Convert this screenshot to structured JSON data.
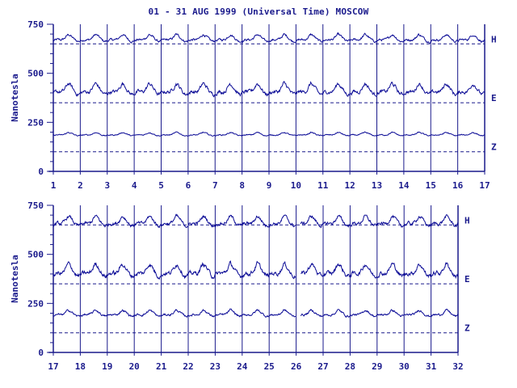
{
  "title": "01 - 31 AUG 1999 (Universal Time) MOSCOW",
  "colors": {
    "ink": "#1a1a8c",
    "trace": "#0b0b96",
    "background": "#ffffff"
  },
  "chart_data": [
    {
      "type": "line",
      "title": "01 - 31 AUG 1999 (Universal Time) MOSCOW",
      "ylabel": "Nanotesla",
      "xlabel": "",
      "x_ticks": [
        "1",
        "2",
        "3",
        "4",
        "5",
        "6",
        "7",
        "8",
        "9",
        "10",
        "11",
        "12",
        "13",
        "14",
        "15",
        "16",
        "17"
      ],
      "x_range": [
        1,
        17
      ],
      "ylim": [
        0,
        750
      ],
      "y_ticks": [
        "0",
        "250",
        "500",
        "750"
      ],
      "grid": "vertical day lines; dashed baselines",
      "series": [
        {
          "name": "H",
          "baseline": 650,
          "mean": 680,
          "amplitude": 25
        },
        {
          "name": "E",
          "baseline": 350,
          "mean": 420,
          "amplitude": 40
        },
        {
          "name": "Z",
          "baseline": 100,
          "mean": 190,
          "amplitude": 12
        }
      ]
    },
    {
      "type": "line",
      "ylabel": "Nanotesla",
      "xlabel": "",
      "x_ticks": [
        "17",
        "18",
        "19",
        "20",
        "21",
        "22",
        "23",
        "24",
        "25",
        "26",
        "27",
        "28",
        "29",
        "30",
        "31",
        "32"
      ],
      "x_range": [
        17,
        32
      ],
      "ylim": [
        0,
        750
      ],
      "y_ticks": [
        "0",
        "250",
        "500",
        "750"
      ],
      "grid": "vertical day lines; dashed baselines",
      "data_gap_x": [
        26.0,
        26.15
      ],
      "series": [
        {
          "name": "H",
          "baseline": 650,
          "mean": 670,
          "amplitude": 35
        },
        {
          "name": "E",
          "baseline": 350,
          "mean": 420,
          "amplitude": 45
        },
        {
          "name": "Z",
          "baseline": 100,
          "mean": 200,
          "amplitude": 22
        }
      ]
    }
  ]
}
